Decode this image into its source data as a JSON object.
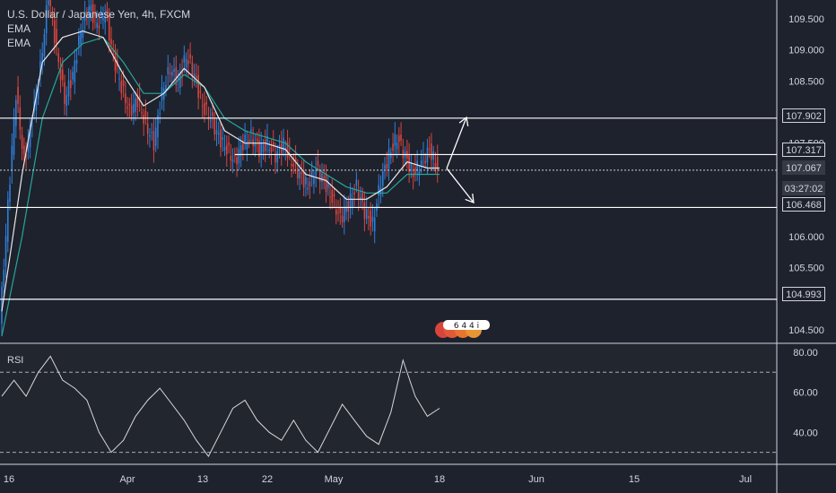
{
  "legend": {
    "title": "U.S. Dollar / Japanese Yen, 4h, FXCM",
    "ema1": "EMA",
    "ema2": "EMA"
  },
  "rsi_label": "RSI",
  "countdown": "03:27:02",
  "event_badge": "6 4 4 i",
  "colors": {
    "background": "#1e222d",
    "up": "#2f7fd8",
    "down": "#d9453d",
    "ema_fast": "#e8e8e8",
    "ema_slow": "#26a69a",
    "rsi": "#d9d9d9",
    "line": "#ffffff"
  },
  "chart_data": [
    {
      "type": "candlestick",
      "x_ticks": [
        "16",
        "Apr",
        "13",
        "22",
        "May",
        "18",
        "Jun",
        "15",
        "Jul"
      ],
      "y_ticks": [
        109.5,
        109.0,
        108.5,
        108.0,
        107.5,
        106.0,
        105.5,
        104.5
      ],
      "ylim": [
        104.3,
        109.8
      ],
      "horizontal_levels": [
        107.902,
        107.317,
        106.468,
        104.993
      ],
      "levels_labels": [
        "107.902",
        "107.317",
        "106.468",
        "104.993"
      ],
      "last_price": 107.067,
      "last_price_label": "107.067",
      "close_path": [
        [
          0,
          104.6
        ],
        [
          4,
          106.5
        ],
        [
          8,
          108.3
        ],
        [
          12,
          107.2
        ],
        [
          16,
          107.9
        ],
        [
          20,
          108.7
        ],
        [
          24,
          109.9
        ],
        [
          28,
          109.0
        ],
        [
          32,
          108.2
        ],
        [
          36,
          108.6
        ],
        [
          40,
          109.3
        ],
        [
          44,
          109.7
        ],
        [
          48,
          109.4
        ],
        [
          52,
          109.6
        ],
        [
          56,
          108.9
        ],
        [
          60,
          108.4
        ],
        [
          64,
          108.0
        ],
        [
          68,
          108.2
        ],
        [
          72,
          107.8
        ],
        [
          76,
          107.5
        ],
        [
          80,
          108.3
        ],
        [
          84,
          108.7
        ],
        [
          88,
          108.5
        ],
        [
          92,
          108.9
        ],
        [
          96,
          108.6
        ],
        [
          100,
          108.1
        ],
        [
          104,
          107.9
        ],
        [
          108,
          107.6
        ],
        [
          112,
          107.4
        ],
        [
          116,
          107.2
        ],
        [
          120,
          107.5
        ],
        [
          124,
          107.6
        ],
        [
          128,
          107.4
        ],
        [
          132,
          107.5
        ],
        [
          136,
          107.3
        ],
        [
          140,
          107.5
        ],
        [
          144,
          107.2
        ],
        [
          148,
          107.0
        ],
        [
          152,
          106.8
        ],
        [
          156,
          107.1
        ],
        [
          160,
          106.9
        ],
        [
          164,
          106.6
        ],
        [
          168,
          106.3
        ],
        [
          172,
          106.5
        ],
        [
          176,
          106.8
        ],
        [
          180,
          106.4
        ],
        [
          184,
          106.2
        ],
        [
          188,
          106.9
        ],
        [
          192,
          107.3
        ],
        [
          196,
          107.6
        ],
        [
          200,
          107.3
        ],
        [
          204,
          107.0
        ],
        [
          208,
          107.2
        ],
        [
          212,
          107.4
        ],
        [
          216,
          107.1
        ]
      ],
      "ema_fast": [
        [
          0,
          104.8
        ],
        [
          10,
          107.0
        ],
        [
          20,
          108.8
        ],
        [
          30,
          109.2
        ],
        [
          40,
          109.3
        ],
        [
          50,
          109.2
        ],
        [
          60,
          108.6
        ],
        [
          70,
          108.1
        ],
        [
          80,
          108.3
        ],
        [
          90,
          108.7
        ],
        [
          100,
          108.4
        ],
        [
          110,
          107.7
        ],
        [
          120,
          107.5
        ],
        [
          130,
          107.5
        ],
        [
          140,
          107.4
        ],
        [
          150,
          107.0
        ],
        [
          160,
          106.9
        ],
        [
          170,
          106.6
        ],
        [
          180,
          106.6
        ],
        [
          190,
          106.8
        ],
        [
          200,
          107.2
        ],
        [
          210,
          107.1
        ],
        [
          216,
          107.1
        ]
      ],
      "ema_slow": [
        [
          0,
          104.4
        ],
        [
          10,
          106.0
        ],
        [
          20,
          107.9
        ],
        [
          30,
          108.8
        ],
        [
          40,
          109.1
        ],
        [
          50,
          109.2
        ],
        [
          60,
          108.8
        ],
        [
          70,
          108.3
        ],
        [
          80,
          108.3
        ],
        [
          90,
          108.6
        ],
        [
          100,
          108.4
        ],
        [
          110,
          107.9
        ],
        [
          120,
          107.7
        ],
        [
          130,
          107.6
        ],
        [
          140,
          107.5
        ],
        [
          150,
          107.2
        ],
        [
          160,
          107.0
        ],
        [
          170,
          106.8
        ],
        [
          180,
          106.7
        ],
        [
          190,
          106.7
        ],
        [
          200,
          107.0
        ],
        [
          210,
          107.0
        ],
        [
          216,
          107.0
        ]
      ]
    },
    {
      "type": "line",
      "name": "RSI",
      "y_ticks": [
        80.0,
        60.0,
        40.0
      ],
      "y_tick_labels": [
        "80.00",
        "60.00",
        "40.00"
      ],
      "ylim": [
        24,
        84
      ],
      "bands": [
        70,
        30
      ],
      "values": [
        [
          0,
          58
        ],
        [
          6,
          66
        ],
        [
          12,
          58
        ],
        [
          18,
          70
        ],
        [
          24,
          78
        ],
        [
          30,
          66
        ],
        [
          36,
          62
        ],
        [
          42,
          56
        ],
        [
          48,
          40
        ],
        [
          54,
          30
        ],
        [
          60,
          36
        ],
        [
          66,
          48
        ],
        [
          72,
          56
        ],
        [
          78,
          62
        ],
        [
          84,
          54
        ],
        [
          90,
          46
        ],
        [
          96,
          36
        ],
        [
          102,
          28
        ],
        [
          108,
          40
        ],
        [
          114,
          52
        ],
        [
          120,
          56
        ],
        [
          126,
          46
        ],
        [
          132,
          40
        ],
        [
          138,
          36
        ],
        [
          144,
          46
        ],
        [
          150,
          36
        ],
        [
          156,
          30
        ],
        [
          162,
          42
        ],
        [
          168,
          54
        ],
        [
          174,
          46
        ],
        [
          180,
          38
        ],
        [
          186,
          34
        ],
        [
          192,
          50
        ],
        [
          198,
          76
        ],
        [
          204,
          58
        ],
        [
          210,
          48
        ],
        [
          216,
          52
        ]
      ]
    }
  ]
}
